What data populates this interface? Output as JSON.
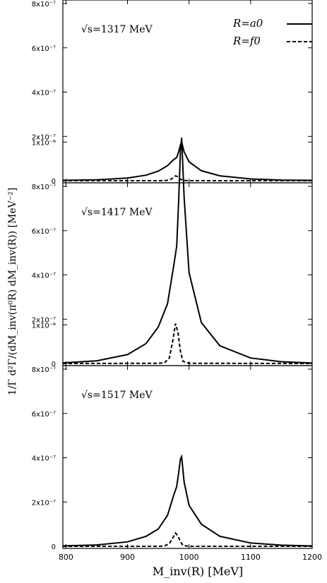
{
  "chart_data": {
    "type": "line",
    "xlabel": "M_inv(R) [MeV]",
    "ylabel": "1/Γ d²Γ/(dM_inv(π⁰R) dM_inv(R)) [MeV⁻²]",
    "xlim": [
      795,
      1200
    ],
    "ylim": [
      -1.5e-08,
      1.1e-06
    ],
    "x_ticks": [
      800,
      900,
      1000,
      1100,
      1200
    ],
    "y_ticks": [
      {
        "value": 0,
        "label": "0"
      },
      {
        "value": 2e-07,
        "label": "2x10⁻⁷"
      },
      {
        "value": 4e-07,
        "label": "4x10⁻⁷"
      },
      {
        "value": 6e-07,
        "label": "6x10⁻⁷"
      },
      {
        "value": 8e-07,
        "label": "8x10⁻⁷"
      },
      {
        "value": 1e-06,
        "label": "1x10⁻⁶"
      }
    ],
    "legend": {
      "placement": "top-right",
      "entries": [
        {
          "label": "R=a0",
          "style": "solid"
        },
        {
          "label": "R=f0",
          "style": "dashed"
        }
      ]
    },
    "panels": [
      {
        "annotation": "√s=1317 MeV",
        "series": [
          {
            "label_ref": "R=a0",
            "x": [
              795,
              850,
              900,
              930,
              950,
              965,
              975,
              980,
              983,
              986,
              988,
              992,
              1000,
              1020,
              1050,
              1100,
              1150,
              1200
            ],
            "y": [
              1.5e-09,
              4e-09,
              1.2e-08,
              2.5e-08,
              4.3e-08,
              6.8e-08,
              9.5e-08,
              1.05e-07,
              1.3e-07,
              1.62e-07,
              1.75e-07,
              1.3e-07,
              8.5e-08,
              4.5e-08,
              2.2e-08,
              8e-09,
              3e-09,
              1.5e-09
            ]
          },
          {
            "label_ref": "R=f0",
            "x": [
              795,
              950,
              960,
              968,
              974,
              978,
              982,
              986,
              990,
              1000,
              1200
            ],
            "y": [
              0,
              0,
              4e-10,
              3e-09,
              1.2e-08,
              2.2e-08,
              1.8e-08,
              7e-09,
              1.5e-09,
              0,
              0
            ]
          }
        ]
      },
      {
        "annotation": "√s=1417 MeV",
        "series": [
          {
            "label_ref": "R=a0",
            "x": [
              795,
              850,
              900,
              930,
              950,
              965,
              975,
              980,
              983,
              986,
              988,
              992,
              1000,
              1020,
              1050,
              1100,
              1150,
              1200
            ],
            "y": [
              3e-09,
              1.2e-08,
              4e-08,
              9e-08,
              1.65e-07,
              2.7e-07,
              4.4e-07,
              5.3e-07,
              7.3e-07,
              9.6e-07,
              1.02e-06,
              7.5e-07,
              4.1e-07,
              1.85e-07,
              8e-08,
              2.5e-08,
              8e-09,
              2e-09
            ]
          },
          {
            "label_ref": "R=f0",
            "x": [
              795,
              950,
              960,
              968,
              974,
              978,
              982,
              986,
              990,
              1000,
              1200
            ],
            "y": [
              0,
              8e-10,
              3e-09,
              2.5e-08,
              1.1e-07,
              1.8e-07,
              1.4e-07,
              5.5e-08,
              1e-08,
              1e-09,
              0
            ]
          }
        ]
      },
      {
        "annotation": "√s=1517 MeV",
        "series": [
          {
            "label_ref": "R=a0",
            "x": [
              795,
              850,
              900,
              930,
              950,
              965,
              975,
              980,
              983,
              986,
              988,
              992,
              1000,
              1020,
              1050,
              1100,
              1150,
              1200
            ],
            "y": [
              2e-09,
              6e-09,
              2e-08,
              4.5e-08,
              7.8e-08,
              1.4e-07,
              2.3e-07,
              2.7e-07,
              3.3e-07,
              3.95e-07,
              4.05e-07,
              2.9e-07,
              1.85e-07,
              1e-07,
              4.5e-08,
              1.5e-08,
              5e-09,
              1.5e-09
            ]
          },
          {
            "label_ref": "R=f0",
            "x": [
              795,
              950,
              960,
              968,
              974,
              978,
              982,
              986,
              990,
              1000,
              1200
            ],
            "y": [
              0,
              0,
              1.5e-09,
              1.2e-08,
              4e-08,
              6e-08,
              4.6e-08,
              2e-08,
              4e-09,
              0,
              0
            ]
          }
        ]
      }
    ]
  }
}
